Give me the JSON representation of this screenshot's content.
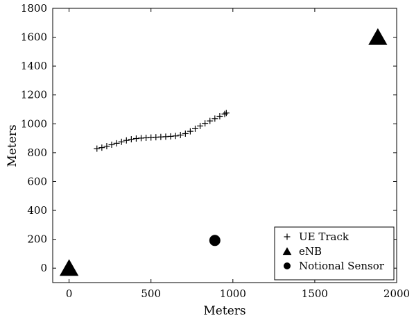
{
  "chart_data": {
    "type": "scatter",
    "title": "",
    "xlabel": "Meters",
    "ylabel": "Meters",
    "xlim": [
      -100,
      2000
    ],
    "ylim": [
      -100,
      1800
    ],
    "xticks": [
      0,
      500,
      1000,
      1500,
      2000
    ],
    "yticks": [
      0,
      200,
      400,
      600,
      800,
      1000,
      1200,
      1400,
      1600,
      1800
    ],
    "xtick_labels": [
      "0",
      "500",
      "1000",
      "1500",
      "2000"
    ],
    "ytick_labels": [
      "0",
      "200",
      "400",
      "600",
      "800",
      "1000",
      "1200",
      "1400",
      "1600",
      "1800"
    ],
    "grid": false,
    "legend_position": "bottom-right",
    "series": [
      {
        "name": "UE Track",
        "marker": "plus",
        "color": "#000000",
        "points": [
          [
            170,
            828
          ],
          [
            200,
            835
          ],
          [
            230,
            845
          ],
          [
            260,
            855
          ],
          [
            290,
            865
          ],
          [
            320,
            875
          ],
          [
            350,
            885
          ],
          [
            380,
            893
          ],
          [
            410,
            898
          ],
          [
            440,
            901
          ],
          [
            470,
            903
          ],
          [
            500,
            905
          ],
          [
            530,
            907
          ],
          [
            560,
            909
          ],
          [
            590,
            911
          ],
          [
            620,
            913
          ],
          [
            650,
            916
          ],
          [
            680,
            922
          ],
          [
            710,
            932
          ],
          [
            740,
            948
          ],
          [
            770,
            966
          ],
          [
            800,
            985
          ],
          [
            830,
            1003
          ],
          [
            860,
            1020
          ],
          [
            890,
            1036
          ],
          [
            920,
            1052
          ],
          [
            950,
            1068
          ],
          [
            960,
            1075
          ]
        ]
      },
      {
        "name": "eNB",
        "marker": "triangle",
        "color": "#000000",
        "points": [
          [
            0,
            0
          ],
          [
            1885,
            1600
          ]
        ]
      },
      {
        "name": "Notional Sensor",
        "marker": "circle",
        "color": "#000000",
        "points": [
          [
            890,
            192
          ]
        ]
      }
    ]
  }
}
